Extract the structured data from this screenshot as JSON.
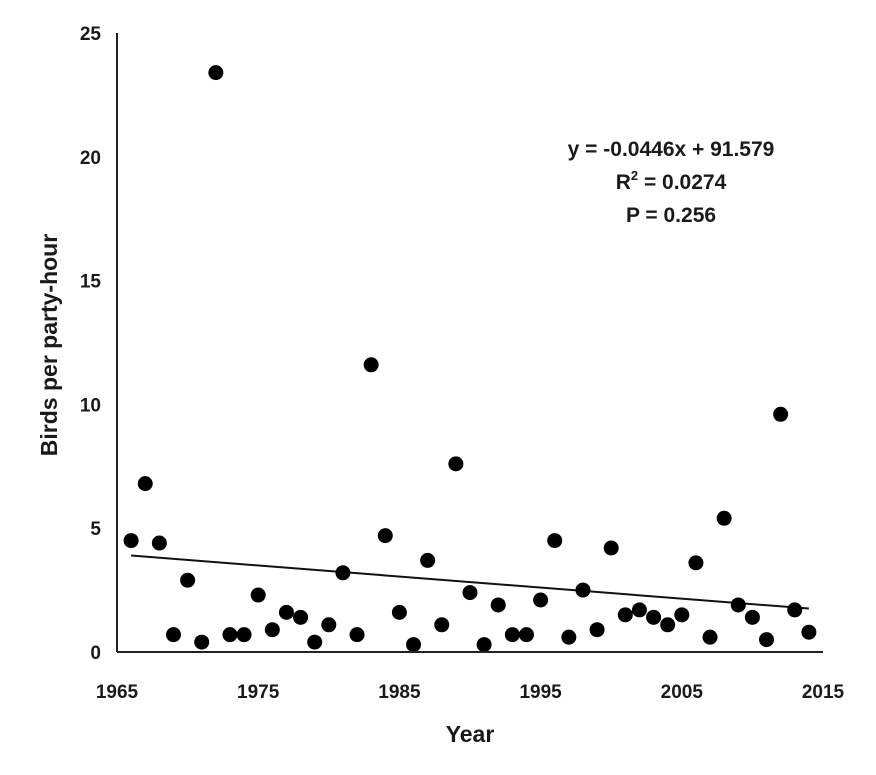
{
  "chart_data": {
    "type": "scatter",
    "xlabel": "Year",
    "ylabel": "Birds per party-hour",
    "xlim": [
      1965,
      2015
    ],
    "ylim": [
      0,
      25
    ],
    "xticks": [
      1965,
      1975,
      1985,
      1995,
      2005,
      2015
    ],
    "yticks": [
      0,
      5,
      10,
      15,
      20,
      25
    ],
    "grid": false,
    "points": [
      {
        "x": 1966,
        "y": 4.5
      },
      {
        "x": 1967,
        "y": 6.8
      },
      {
        "x": 1968,
        "y": 4.4
      },
      {
        "x": 1969,
        "y": 0.7
      },
      {
        "x": 1970,
        "y": 2.9
      },
      {
        "x": 1971,
        "y": 0.4
      },
      {
        "x": 1972,
        "y": 23.4
      },
      {
        "x": 1973,
        "y": 0.7
      },
      {
        "x": 1974,
        "y": 0.7
      },
      {
        "x": 1975,
        "y": 2.3
      },
      {
        "x": 1976,
        "y": 0.9
      },
      {
        "x": 1977,
        "y": 1.6
      },
      {
        "x": 1978,
        "y": 1.4
      },
      {
        "x": 1979,
        "y": 0.4
      },
      {
        "x": 1980,
        "y": 1.1
      },
      {
        "x": 1981,
        "y": 3.2
      },
      {
        "x": 1982,
        "y": 0.7
      },
      {
        "x": 1983,
        "y": 11.6
      },
      {
        "x": 1984,
        "y": 4.7
      },
      {
        "x": 1985,
        "y": 1.6
      },
      {
        "x": 1986,
        "y": 0.3
      },
      {
        "x": 1987,
        "y": 3.7
      },
      {
        "x": 1988,
        "y": 1.1
      },
      {
        "x": 1989,
        "y": 7.6
      },
      {
        "x": 1990,
        "y": 2.4
      },
      {
        "x": 1991,
        "y": 0.3
      },
      {
        "x": 1992,
        "y": 1.9
      },
      {
        "x": 1993,
        "y": 0.7
      },
      {
        "x": 1994,
        "y": 0.7
      },
      {
        "x": 1995,
        "y": 2.1
      },
      {
        "x": 1996,
        "y": 4.5
      },
      {
        "x": 1997,
        "y": 0.6
      },
      {
        "x": 1998,
        "y": 2.5
      },
      {
        "x": 1999,
        "y": 0.9
      },
      {
        "x": 2000,
        "y": 4.2
      },
      {
        "x": 2001,
        "y": 1.5
      },
      {
        "x": 2002,
        "y": 1.7
      },
      {
        "x": 2003,
        "y": 1.4
      },
      {
        "x": 2004,
        "y": 1.1
      },
      {
        "x": 2005,
        "y": 1.5
      },
      {
        "x": 2006,
        "y": 3.6
      },
      {
        "x": 2007,
        "y": 0.6
      },
      {
        "x": 2008,
        "y": 5.4
      },
      {
        "x": 2009,
        "y": 1.9
      },
      {
        "x": 2010,
        "y": 1.4
      },
      {
        "x": 2011,
        "y": 0.5
      },
      {
        "x": 2012,
        "y": 9.6
      },
      {
        "x": 2013,
        "y": 1.7
      },
      {
        "x": 2014,
        "y": 0.8
      }
    ],
    "trendline": {
      "slope": -0.0446,
      "intercept": 91.579,
      "x_range": [
        1966,
        2014
      ]
    },
    "annotations": {
      "equation": "y = -0.0446x + 91.579",
      "r2_prefix": "R",
      "r2_sup": "2",
      "r2_value": " = 0.0274",
      "p_value": "P = 0.256"
    }
  }
}
